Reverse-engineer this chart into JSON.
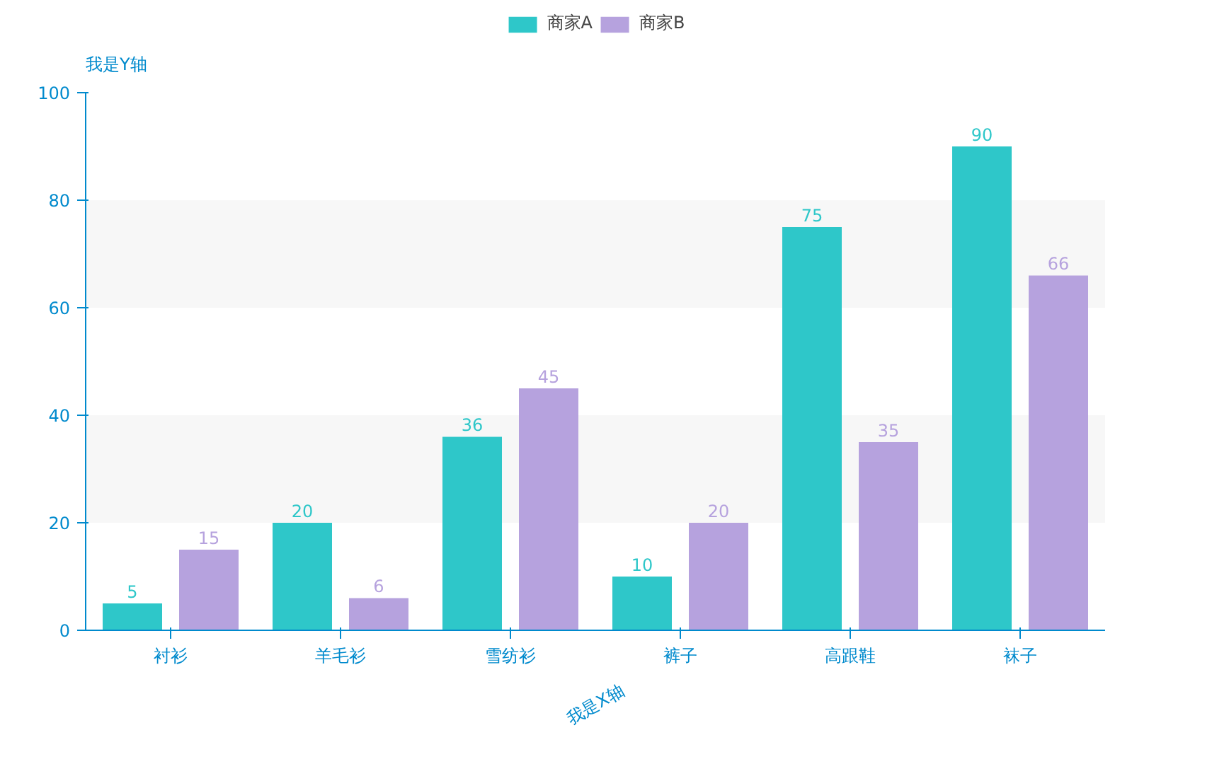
{
  "chart_data": {
    "type": "bar",
    "xlabel": "我是X轴",
    "ylabel": "我是Y轴",
    "categories": [
      "衬衫",
      "羊毛衫",
      "雪纺衫",
      "裤子",
      "高跟鞋",
      "袜子"
    ],
    "series": [
      {
        "name": "商家A",
        "color": "#2ec7c9",
        "values": [
          5,
          20,
          36,
          10,
          75,
          90
        ]
      },
      {
        "name": "商家B",
        "color": "#b6a2de",
        "values": [
          15,
          6,
          45,
          20,
          35,
          66
        ]
      }
    ],
    "ylim": [
      0,
      100
    ],
    "yticks": [
      0,
      20,
      40,
      60,
      80,
      100
    ],
    "bands": [
      {
        "axis": "y",
        "from": 20,
        "to": 40,
        "color": "#f7f7f7"
      },
      {
        "axis": "y",
        "from": 60,
        "to": 80,
        "color": "#f7f7f7"
      }
    ],
    "legend": "top",
    "data_labels": true
  }
}
